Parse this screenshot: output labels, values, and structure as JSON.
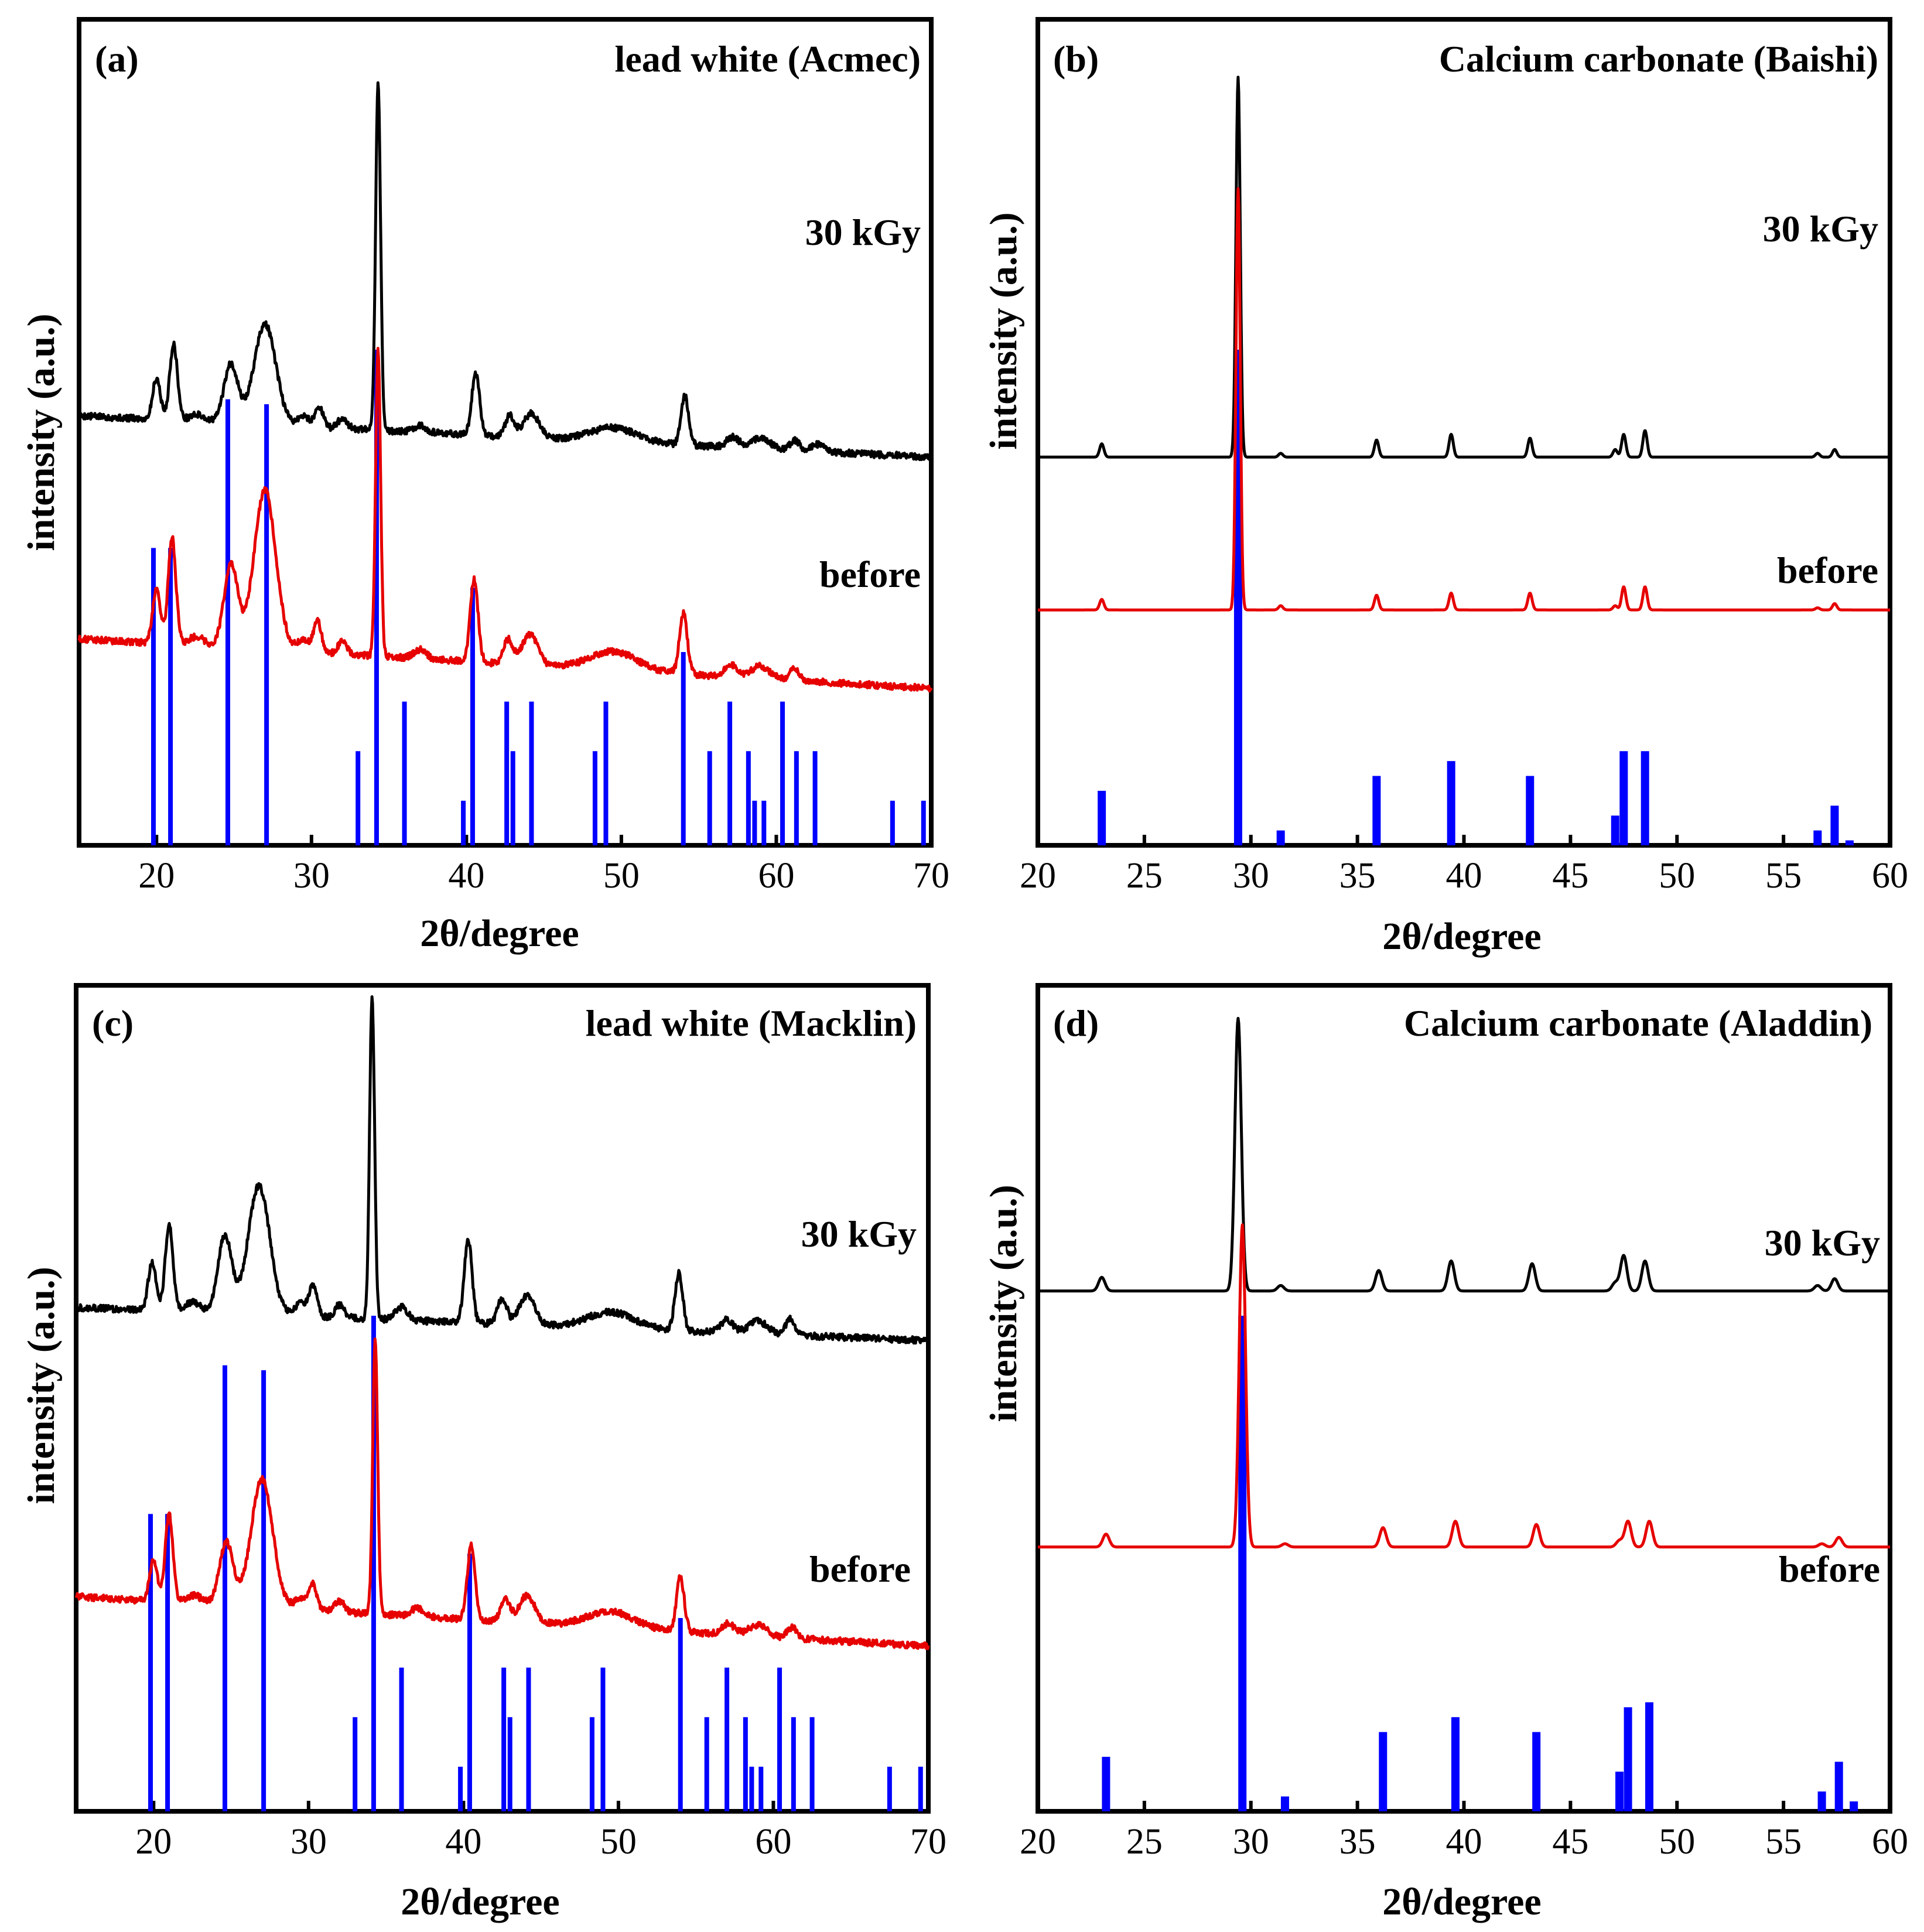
{
  "chart_data": [
    {
      "type": "line",
      "panel": "(a)",
      "title": "lead white (Acmec)",
      "xlabel": "2θ/degree",
      "ylabel": "intensity (a.u.)",
      "xlim": [
        15,
        70
      ],
      "x_ticks": [
        20,
        30,
        40,
        50,
        60,
        70
      ],
      "noisy": true,
      "series": [
        {
          "name": "30 kGy",
          "color": "#000000",
          "base": [
            0.52,
            0.47
          ],
          "scale": 0.42,
          "peaks": [
            [
              20.0,
              0.12,
              0.25
            ],
            [
              21.1,
              0.22,
              0.25
            ],
            [
              22.6,
              0.02,
              0.5
            ],
            [
              24.8,
              0.17,
              0.45
            ],
            [
              27.0,
              0.29,
              0.7
            ],
            [
              29.5,
              0.03,
              0.4
            ],
            [
              30.5,
              0.06,
              0.25
            ],
            [
              32.0,
              0.03,
              0.3
            ],
            [
              34.3,
              1.0,
              0.16
            ],
            [
              37.0,
              0.02,
              0.4
            ],
            [
              40.6,
              0.18,
              0.25
            ],
            [
              42.8,
              0.06,
              0.3
            ],
            [
              44.2,
              0.07,
              0.5
            ],
            [
              49.5,
              0.04,
              1.5
            ],
            [
              54.1,
              0.14,
              0.25
            ],
            [
              57.2,
              0.03,
              0.4
            ],
            [
              59.0,
              0.03,
              0.6
            ],
            [
              61.2,
              0.03,
              0.3
            ],
            [
              62.7,
              0.02,
              0.4
            ]
          ]
        },
        {
          "name": "before",
          "color": "#e60000",
          "base": [
            0.25,
            0.19
          ],
          "scale": 0.37,
          "peaks": [
            [
              20.0,
              0.18,
              0.25
            ],
            [
              21.0,
              0.35,
              0.25
            ],
            [
              22.6,
              0.03,
              0.5
            ],
            [
              24.8,
              0.27,
              0.45
            ],
            [
              27.0,
              0.52,
              0.7
            ],
            [
              29.5,
              0.04,
              0.4
            ],
            [
              30.4,
              0.1,
              0.25
            ],
            [
              32.0,
              0.04,
              0.3
            ],
            [
              34.3,
              1.0,
              0.16
            ],
            [
              37.0,
              0.03,
              0.4
            ],
            [
              40.5,
              0.27,
              0.25
            ],
            [
              42.7,
              0.08,
              0.3
            ],
            [
              44.1,
              0.1,
              0.5
            ],
            [
              49.5,
              0.06,
              1.5
            ],
            [
              54.0,
              0.2,
              0.25
            ],
            [
              57.1,
              0.04,
              0.4
            ],
            [
              59.0,
              0.04,
              0.6
            ],
            [
              61.2,
              0.04,
              0.3
            ]
          ]
        }
      ],
      "reference_lines": {
        "color": "#0000ff",
        "positions": [
          19.8,
          20.9,
          24.6,
          27.1,
          33.0,
          34.2,
          36.0,
          39.8,
          40.4,
          42.6,
          43.0,
          44.2,
          48.3,
          49.0,
          54.0,
          55.7,
          57.0,
          58.2,
          58.6,
          59.2,
          60.4,
          61.3,
          62.5,
          67.5,
          69.5
        ],
        "heights": [
          0.6,
          0.6,
          0.9,
          0.89,
          0.19,
          1.0,
          0.29,
          0.09,
          0.52,
          0.29,
          0.19,
          0.29,
          0.19,
          0.29,
          0.39,
          0.19,
          0.29,
          0.19,
          0.09,
          0.09,
          0.29,
          0.19,
          0.19,
          0.09,
          0.09
        ]
      },
      "trace_labels": [
        "30 kGy",
        "before"
      ]
    },
    {
      "type": "line",
      "panel": "(b)",
      "title": "Calcium carbonate (Baishi)",
      "xlabel": "2θ/degree",
      "ylabel": "intensity (a.u.)",
      "xlim": [
        20,
        60
      ],
      "x_ticks": [
        20,
        25,
        30,
        35,
        40,
        45,
        50,
        55,
        60
      ],
      "noisy": false,
      "series": [
        {
          "name": "30 kGy",
          "color": "#000000",
          "base": [
            0.47,
            0.47
          ],
          "scale": 0.46,
          "peaks": [
            [
              23.0,
              0.035,
              0.1
            ],
            [
              29.4,
              1.0,
              0.1
            ],
            [
              31.4,
              0.01,
              0.1
            ],
            [
              35.9,
              0.045,
              0.1
            ],
            [
              39.4,
              0.06,
              0.1
            ],
            [
              43.1,
              0.05,
              0.1
            ],
            [
              47.1,
              0.02,
              0.1
            ],
            [
              47.5,
              0.06,
              0.1
            ],
            [
              48.5,
              0.07,
              0.1
            ],
            [
              56.6,
              0.01,
              0.1
            ],
            [
              57.4,
              0.02,
              0.1
            ]
          ]
        },
        {
          "name": "before",
          "color": "#e60000",
          "base": [
            0.285,
            0.285
          ],
          "scale": 0.51,
          "peaks": [
            [
              23.0,
              0.025,
              0.1
            ],
            [
              29.4,
              1.0,
              0.1
            ],
            [
              31.4,
              0.01,
              0.1
            ],
            [
              35.9,
              0.035,
              0.1
            ],
            [
              39.4,
              0.04,
              0.1
            ],
            [
              43.1,
              0.04,
              0.1
            ],
            [
              47.1,
              0.01,
              0.1
            ],
            [
              47.5,
              0.055,
              0.1
            ],
            [
              48.5,
              0.055,
              0.1
            ],
            [
              56.6,
              0.005,
              0.1
            ],
            [
              57.4,
              0.015,
              0.1
            ]
          ]
        }
      ],
      "reference_lines": {
        "color": "#0000ff",
        "positions": [
          23.0,
          29.4,
          31.4,
          35.9,
          39.4,
          43.1,
          47.1,
          47.5,
          48.5,
          56.6,
          57.4,
          58.1
        ],
        "heights": [
          0.11,
          1.0,
          0.03,
          0.14,
          0.17,
          0.14,
          0.06,
          0.19,
          0.19,
          0.03,
          0.08,
          0.01
        ]
      },
      "trace_labels": [
        "30 kGy",
        "before"
      ]
    },
    {
      "type": "line",
      "panel": "(c)",
      "title": "lead white (Macklin)",
      "xlabel": "2θ/degree",
      "ylabel": "intensity (a.u.)",
      "xlim": [
        15,
        70
      ],
      "x_ticks": [
        20,
        30,
        40,
        50,
        60,
        70
      ],
      "noisy": true,
      "series": [
        {
          "name": "30 kGy",
          "color": "#000000",
          "base": [
            0.61,
            0.57
          ],
          "scale": 0.39,
          "peaks": [
            [
              19.9,
              0.15,
              0.25
            ],
            [
              21.0,
              0.27,
              0.25
            ],
            [
              22.5,
              0.03,
              0.5
            ],
            [
              24.6,
              0.24,
              0.45
            ],
            [
              26.8,
              0.4,
              0.7
            ],
            [
              29.5,
              0.04,
              0.4
            ],
            [
              30.3,
              0.09,
              0.25
            ],
            [
              32.0,
              0.04,
              0.3
            ],
            [
              34.1,
              1.0,
              0.16
            ],
            [
              36.0,
              0.04,
              0.4
            ],
            [
              40.3,
              0.26,
              0.25
            ],
            [
              42.5,
              0.08,
              0.3
            ],
            [
              44.1,
              0.09,
              0.5
            ],
            [
              49.5,
              0.05,
              1.5
            ],
            [
              53.9,
              0.18,
              0.25
            ],
            [
              57.0,
              0.04,
              0.4
            ],
            [
              59.0,
              0.04,
              0.6
            ],
            [
              61.1,
              0.05,
              0.3
            ]
          ]
        },
        {
          "name": "before",
          "color": "#e60000",
          "base": [
            0.26,
            0.2
          ],
          "scale": 0.33,
          "peaks": [
            [
              20.0,
              0.15,
              0.25
            ],
            [
              21.0,
              0.32,
              0.25
            ],
            [
              22.6,
              0.03,
              0.5
            ],
            [
              24.7,
              0.23,
              0.45
            ],
            [
              27.0,
              0.47,
              0.7
            ],
            [
              29.5,
              0.04,
              0.4
            ],
            [
              30.3,
              0.09,
              0.25
            ],
            [
              32.0,
              0.04,
              0.3
            ],
            [
              34.3,
              1.0,
              0.16
            ],
            [
              37.0,
              0.03,
              0.4
            ],
            [
              40.5,
              0.27,
              0.25
            ],
            [
              42.7,
              0.08,
              0.3
            ],
            [
              44.1,
              0.1,
              0.5
            ],
            [
              49.5,
              0.06,
              1.5
            ],
            [
              54.0,
              0.2,
              0.25
            ],
            [
              57.1,
              0.04,
              0.4
            ],
            [
              59.0,
              0.04,
              0.6
            ],
            [
              61.2,
              0.04,
              0.3
            ]
          ]
        }
      ],
      "reference_lines": {
        "color": "#0000ff",
        "positions": [
          19.8,
          20.9,
          24.6,
          27.1,
          33.0,
          34.2,
          36.0,
          39.8,
          40.4,
          42.6,
          43.0,
          44.2,
          48.3,
          49.0,
          54.0,
          55.7,
          57.0,
          58.2,
          58.6,
          59.2,
          60.4,
          61.3,
          62.5,
          67.5,
          69.5
        ],
        "heights": [
          0.6,
          0.6,
          0.9,
          0.89,
          0.19,
          1.0,
          0.29,
          0.09,
          0.52,
          0.29,
          0.19,
          0.29,
          0.19,
          0.29,
          0.39,
          0.19,
          0.29,
          0.19,
          0.09,
          0.09,
          0.29,
          0.19,
          0.19,
          0.09,
          0.09
        ]
      },
      "trace_labels": [
        "30 kGy",
        "before"
      ]
    },
    {
      "type": "line",
      "panel": "(d)",
      "title": "Calcium carbonate (Aladdin)",
      "xlabel": "2θ/degree",
      "ylabel": "intensity (a.u.)",
      "xlim": [
        20,
        60
      ],
      "x_ticks": [
        20,
        25,
        30,
        35,
        40,
        45,
        50,
        55,
        60
      ],
      "noisy": false,
      "series": [
        {
          "name": "30 kGy",
          "color": "#000000",
          "base": [
            0.63,
            0.63
          ],
          "scale": 0.33,
          "peaks": [
            [
              23.0,
              0.05,
              0.15
            ],
            [
              29.4,
              1.0,
              0.15
            ],
            [
              31.4,
              0.02,
              0.15
            ],
            [
              36.0,
              0.075,
              0.15
            ],
            [
              39.4,
              0.11,
              0.15
            ],
            [
              43.2,
              0.1,
              0.15
            ],
            [
              47.1,
              0.03,
              0.15
            ],
            [
              47.5,
              0.13,
              0.15
            ],
            [
              48.5,
              0.11,
              0.15
            ],
            [
              56.6,
              0.02,
              0.15
            ],
            [
              57.4,
              0.045,
              0.15
            ]
          ]
        },
        {
          "name": "before",
          "color": "#e60000",
          "base": [
            0.32,
            0.32
          ],
          "scale": 0.39,
          "peaks": [
            [
              23.2,
              0.04,
              0.15
            ],
            [
              29.6,
              1.0,
              0.15
            ],
            [
              31.6,
              0.01,
              0.15
            ],
            [
              36.2,
              0.06,
              0.15
            ],
            [
              39.6,
              0.08,
              0.15
            ],
            [
              43.4,
              0.07,
              0.15
            ],
            [
              47.3,
              0.02,
              0.15
            ],
            [
              47.7,
              0.08,
              0.15
            ],
            [
              48.7,
              0.08,
              0.15
            ],
            [
              56.8,
              0.01,
              0.15
            ],
            [
              57.6,
              0.03,
              0.15
            ]
          ]
        }
      ],
      "reference_lines": {
        "color": "#0000ff",
        "positions": [
          23.2,
          29.6,
          31.6,
          36.2,
          39.6,
          43.4,
          47.3,
          47.7,
          48.7,
          56.8,
          57.6,
          58.3
        ],
        "heights": [
          0.11,
          1.0,
          0.03,
          0.16,
          0.19,
          0.16,
          0.08,
          0.21,
          0.22,
          0.04,
          0.1,
          0.02
        ]
      },
      "trace_labels": [
        "30 kGy",
        "before"
      ]
    }
  ]
}
